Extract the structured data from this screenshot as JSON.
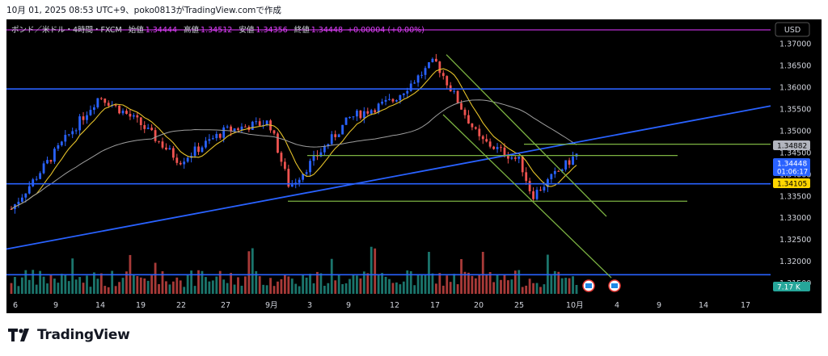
{
  "header": {
    "snapshot_line": "10月 01, 2025 08:53 UTC+9、poko0813がTradingView.comで作成"
  },
  "legend": {
    "symbol": "ポンド／米ドル・4時間・FXCM",
    "open_label": "始値",
    "open": "1.34444",
    "high_label": "高値",
    "high": "1.34512",
    "low_label": "安値",
    "low": "1.34356",
    "close_label": "終値",
    "close": "1.34448",
    "change": "+0.00004 (+0.00%)"
  },
  "currency_button": "USD",
  "footer": {
    "brand": "TradingView"
  },
  "colors": {
    "background": "#000000",
    "up_candle": "#2962ff",
    "down_candle": "#ef5350",
    "volume_up": "#26a69a",
    "volume_down": "#ef5350",
    "trendline": "#2962ff",
    "horizontal_line": "#2962ff",
    "channel_line": "#7cb342",
    "ma_fast": "#e6c229",
    "ma_slow": "#9e9e9e",
    "top_line": "#9c27b0"
  },
  "chart_data": {
    "type": "candlestick",
    "timeframe": "4H",
    "y_axis": {
      "ticks": [
        "1.37000",
        "1.36500",
        "1.36000",
        "1.35500",
        "1.35000",
        "1.34500",
        "1.34000",
        "1.33500",
        "1.33000",
        "1.32500",
        "1.32000",
        "1.31500"
      ],
      "ylim": [
        1.3125,
        1.3756
      ]
    },
    "x_axis": {
      "ticks": [
        "6",
        "9",
        "14",
        "19",
        "22",
        "27",
        "9月",
        "3",
        "9",
        "12",
        "17",
        "20",
        "25",
        "10月",
        "4",
        "9",
        "14",
        "17"
      ]
    },
    "price_labels": [
      {
        "value": "1.34882",
        "style": "grey"
      },
      {
        "value": "1.34448",
        "sub": "01:06:17",
        "style": "blue"
      },
      {
        "value": "1.34105",
        "style": "yellow"
      },
      {
        "value": "7.17 K",
        "style": "green"
      }
    ],
    "key_points": [
      {
        "x": "6",
        "close": 1.332
      },
      {
        "x": "9",
        "close": 1.345
      },
      {
        "x": "14",
        "close": 1.358
      },
      {
        "x": "19",
        "close": 1.352
      },
      {
        "x": "22",
        "close": 1.343
      },
      {
        "x": "27",
        "close": 1.35
      },
      {
        "x": "9月",
        "close": 1.352
      },
      {
        "x": "3",
        "close": 1.337
      },
      {
        "x": "9",
        "close": 1.353
      },
      {
        "x": "12",
        "close": 1.357
      },
      {
        "x": "17",
        "close": 1.366
      },
      {
        "x": "20",
        "close": 1.348
      },
      {
        "x": "25",
        "close": 1.343
      },
      {
        "x": "26",
        "close": 1.335
      },
      {
        "x": "10月",
        "close": 1.3445
      }
    ],
    "horizontal_lines": [
      1.3596,
      1.3378,
      1.3169
    ],
    "support_lines": [
      1.3469,
      1.3443,
      1.3338
    ]
  }
}
